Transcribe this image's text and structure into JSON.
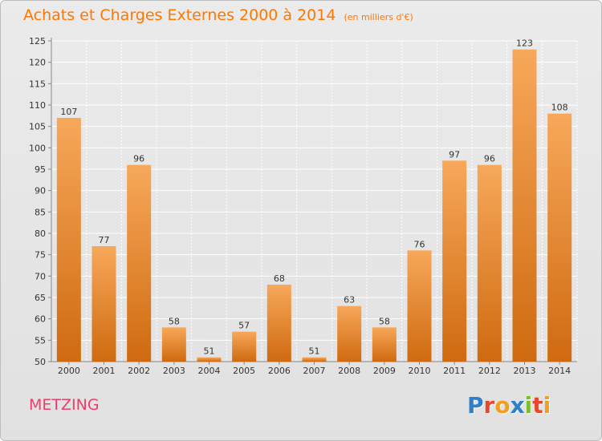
{
  "header": {
    "title": "Achats et Charges Externes 2000 à 2014",
    "subtitle": "(en milliers d'€)"
  },
  "footer": {
    "location": "METZING",
    "brand": "Proxiti",
    "brand_colors": [
      "#2f80c8",
      "#e8472a",
      "#f0a020",
      "#2f80c8",
      "#7cbf2c",
      "#e8472a",
      "#f0a020"
    ]
  },
  "colors": {
    "bar_top": "#f7a85a",
    "bar_bottom": "#cf6a10",
    "grid": "#ffffff",
    "axis_text": "#333333"
  },
  "chart_data": {
    "type": "bar",
    "categories": [
      "2000",
      "2001",
      "2002",
      "2003",
      "2004",
      "2005",
      "2006",
      "2007",
      "2008",
      "2009",
      "2010",
      "2011",
      "2012",
      "2013",
      "2014"
    ],
    "values": [
      107,
      77,
      96,
      58,
      51,
      57,
      68,
      51,
      63,
      58,
      76,
      97,
      96,
      123,
      108
    ],
    "ylim": [
      50,
      125
    ],
    "yticks": [
      50,
      55,
      60,
      65,
      70,
      75,
      80,
      85,
      90,
      95,
      100,
      105,
      110,
      115,
      120,
      125
    ],
    "grid": true,
    "legend": "none"
  }
}
